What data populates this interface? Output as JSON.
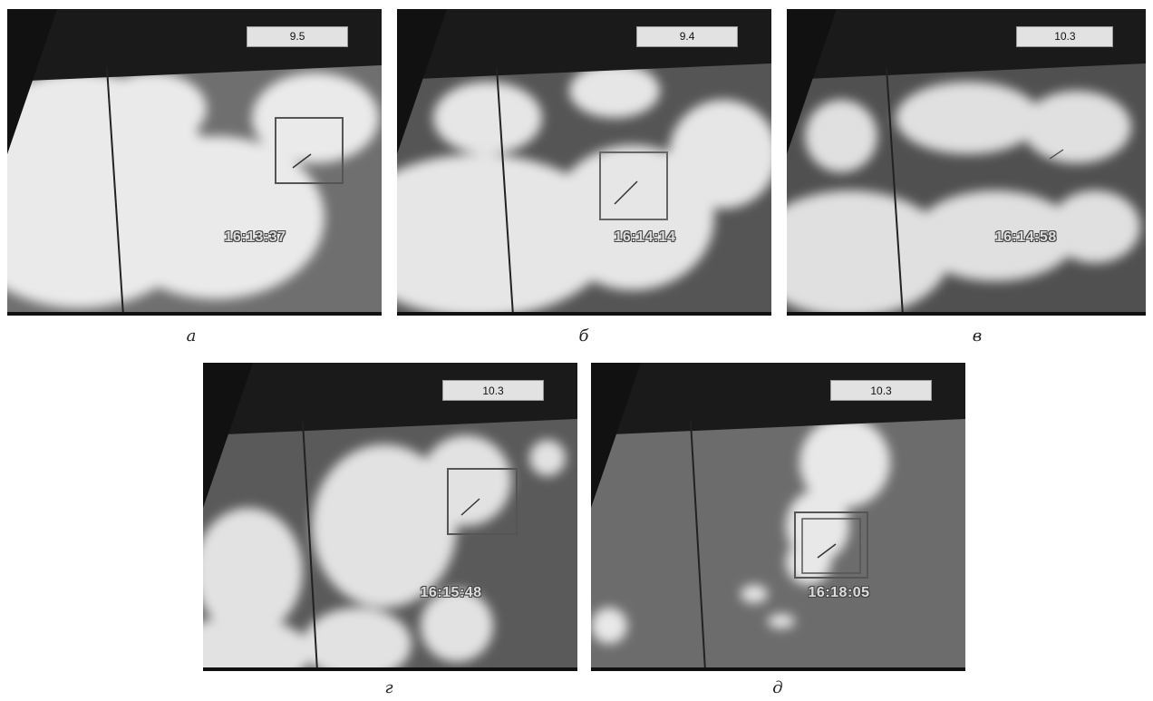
{
  "panels": [
    {
      "gauge": "9.5",
      "timestamp": "16:13:37",
      "caption": "а"
    },
    {
      "gauge": "9.4",
      "timestamp": "16:14:14",
      "caption": "б"
    },
    {
      "gauge": "10.3",
      "timestamp": "16:14:58",
      "caption": "в"
    },
    {
      "gauge": "10.3",
      "timestamp": "16:15:48",
      "caption": "г"
    },
    {
      "gauge": "10.3",
      "timestamp": "16:18:05",
      "caption": "д"
    }
  ]
}
